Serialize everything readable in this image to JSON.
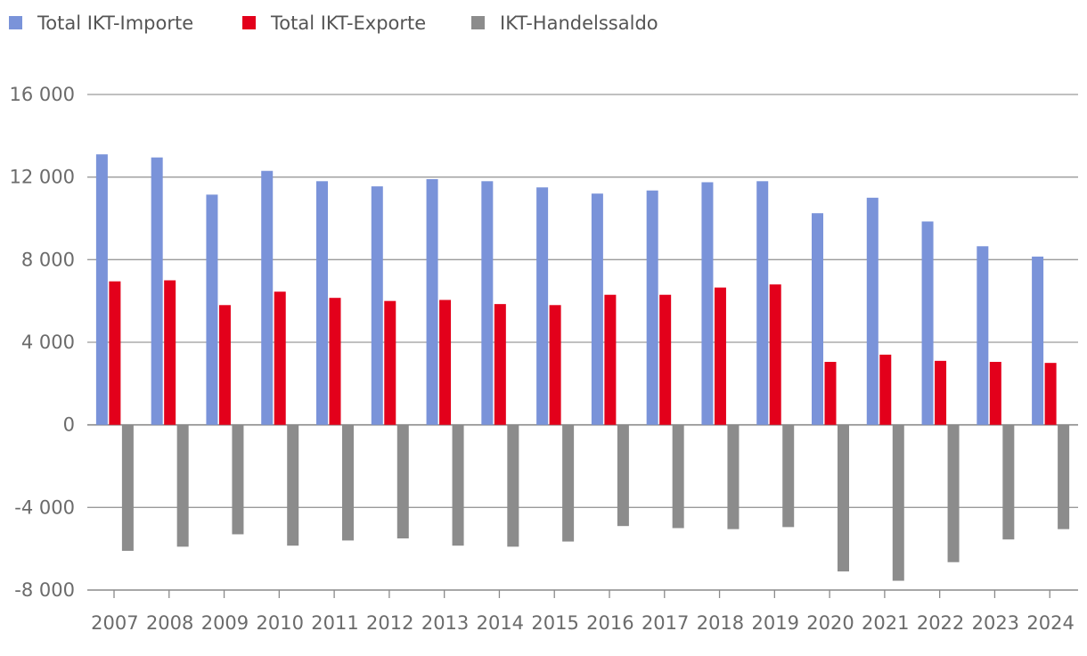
{
  "chart_data": {
    "type": "bar",
    "title": "",
    "xlabel": "",
    "ylabel": "",
    "ylim": [
      -8000,
      16000
    ],
    "yticks": [
      16000,
      12000,
      8000,
      4000,
      0,
      -4000,
      -8000
    ],
    "ytick_labels": [
      "16 000",
      "12 000",
      "8 000",
      "4 000",
      "0",
      "-4 000",
      "-8 000"
    ],
    "grid": true,
    "legend_position": "top-left",
    "categories": [
      "2007",
      "2008",
      "2009",
      "2010",
      "2011",
      "2012",
      "2013",
      "2014",
      "2015",
      "2016",
      "2017",
      "2018",
      "2019",
      "2020",
      "2021",
      "2022",
      "2023",
      "2024"
    ],
    "series": [
      {
        "name": "Total IKT-Importe",
        "color": "#7a93d9",
        "values": [
          13100,
          12950,
          11150,
          12300,
          11800,
          11550,
          11900,
          11800,
          11500,
          11200,
          11350,
          11750,
          11800,
          10250,
          11000,
          9850,
          8650,
          8150
        ]
      },
      {
        "name": "Total IKT-Exporte",
        "color": "#e3001b",
        "values": [
          6950,
          7000,
          5800,
          6450,
          6150,
          6000,
          6050,
          5850,
          5800,
          6300,
          6300,
          6650,
          6800,
          3050,
          3400,
          3100,
          3050,
          3000
        ]
      },
      {
        "name": "IKT-Handelssaldo",
        "color": "#8c8c8c",
        "values": [
          -6100,
          -5900,
          -5300,
          -5850,
          -5600,
          -5500,
          -5850,
          -5900,
          -5650,
          -4900,
          -5000,
          -5050,
          -4950,
          -7100,
          -7550,
          -6650,
          -5550,
          -5050
        ]
      }
    ]
  }
}
